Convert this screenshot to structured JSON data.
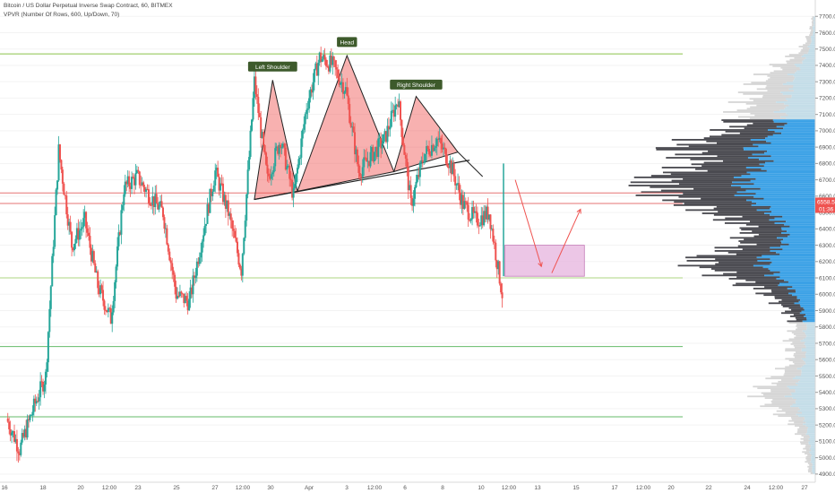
{
  "header": {
    "symbol_line": "Bitcoin / US Dollar Perpetual Inverse Swap Contract, 60, BITMEX",
    "indicator_line": "VPVR (Number Of Rows, 600, Up/Down, 70)"
  },
  "chart_data": {
    "type": "candlestick",
    "ylim": [
      4850,
      7800
    ],
    "y_ticks": [
      4900,
      5000,
      5100,
      5200,
      5300,
      5400,
      5500,
      5600,
      5700,
      5800,
      5900,
      6000,
      6100,
      6200,
      6300,
      6400,
      6500,
      6600,
      6700,
      6800,
      6900,
      7000,
      7100,
      7200,
      7300,
      7400,
      7500,
      7600,
      7700
    ],
    "x_ticks": [
      "16",
      "18",
      "20",
      "12:00",
      "23",
      "25",
      "27",
      "12:00",
      "30",
      "Apr",
      "3",
      "12:00",
      "6",
      "8",
      "10",
      "12:00",
      "13",
      "15",
      "17",
      "12:00",
      "20",
      "22",
      "24",
      "12:00",
      "27"
    ],
    "last_price": {
      "label": "6558.5",
      "countdown": "01:36",
      "value": 6558.5,
      "color": "#ef5350"
    },
    "price_path": [
      [
        16,
        5240
      ],
      [
        17,
        5050
      ],
      [
        18,
        5290
      ],
      [
        19,
        5500
      ],
      [
        20,
        6880
      ],
      [
        21,
        6300
      ],
      [
        22,
        6450
      ],
      [
        23,
        6050
      ],
      [
        24,
        5850
      ],
      [
        25,
        6650
      ],
      [
        26,
        6720
      ],
      [
        27,
        6600
      ],
      [
        28,
        6500
      ],
      [
        29,
        6000
      ],
      [
        30,
        5950
      ],
      [
        31,
        6350
      ],
      [
        32,
        6750
      ],
      [
        33,
        6500
      ],
      [
        34,
        6150
      ],
      [
        35,
        7300
      ],
      [
        36,
        6700
      ],
      [
        37,
        6950
      ],
      [
        38,
        6600
      ],
      [
        39,
        7150
      ],
      [
        40,
        7450
      ],
      [
        41,
        7400
      ],
      [
        42,
        7250
      ],
      [
        43,
        6750
      ],
      [
        44,
        6850
      ],
      [
        45,
        6950
      ],
      [
        46,
        7200
      ],
      [
        47,
        6550
      ],
      [
        48,
        6850
      ],
      [
        49,
        6950
      ],
      [
        50,
        6800
      ],
      [
        51,
        6550
      ],
      [
        52,
        6450
      ],
      [
        53,
        6500
      ],
      [
        54,
        6000
      ]
    ],
    "horizontal_levels": [
      {
        "value": 7470,
        "color": "#8bc34a"
      },
      {
        "value": 6620,
        "color": "#e57373"
      },
      {
        "value": 6555,
        "color": "#e57373"
      },
      {
        "value": 6100,
        "color": "#aed581"
      },
      {
        "value": 5680,
        "color": "#66bb6a"
      },
      {
        "value": 5250,
        "color": "#66bb6a"
      }
    ],
    "annotations": {
      "left_shoulder": "Left Shoulder",
      "head": "Head",
      "right_shoulder": "Right Shoulder"
    },
    "target_zone": {
      "top": 6300,
      "bottom": 6110,
      "color": "#e7b8e0"
    },
    "volume_profile": {
      "value_area": [
        5830,
        7060
      ],
      "colors": {
        "up": "#4a4a50",
        "down": "#3ba1e6",
        "outside": "#d6d6d6",
        "outside_down": "#c4dde8"
      },
      "rows": [
        [
          4900,
          6
        ],
        [
          5000,
          10
        ],
        [
          5100,
          14
        ],
        [
          5200,
          22
        ],
        [
          5300,
          45
        ],
        [
          5400,
          60
        ],
        [
          5500,
          40
        ],
        [
          5600,
          25
        ],
        [
          5700,
          28
        ],
        [
          5800,
          22
        ],
        [
          5900,
          30
        ],
        [
          6000,
          50
        ],
        [
          6100,
          90
        ],
        [
          6200,
          130
        ],
        [
          6300,
          80
        ],
        [
          6400,
          70
        ],
        [
          6500,
          110
        ],
        [
          6600,
          160
        ],
        [
          6700,
          175
        ],
        [
          6800,
          120
        ],
        [
          6900,
          150
        ],
        [
          7000,
          90
        ],
        [
          7100,
          80
        ],
        [
          7200,
          70
        ],
        [
          7300,
          60
        ],
        [
          7400,
          40
        ],
        [
          7500,
          15
        ],
        [
          7600,
          6
        ],
        [
          7700,
          3
        ]
      ]
    }
  }
}
